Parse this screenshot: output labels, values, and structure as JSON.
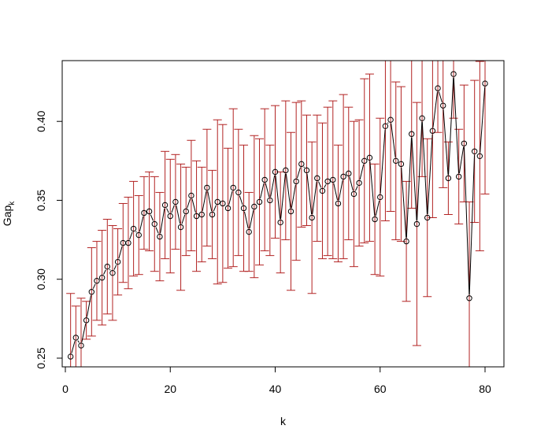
{
  "chart_data": {
    "type": "line",
    "title": "",
    "xlabel": "k",
    "ylabel": "Gap",
    "ylabel_subscript": "k",
    "xlim": [
      -0.6,
      83.6
    ],
    "ylim": [
      0.2445,
      0.4385
    ],
    "x_ticks": [
      0,
      20,
      40,
      60,
      80
    ],
    "y_ticks": [
      0.25,
      0.3,
      0.35,
      0.4
    ],
    "x_tick_labels": [
      "0",
      "20",
      "40",
      "60",
      "80"
    ],
    "y_tick_labels": [
      "0.25",
      "0.30",
      "0.35",
      "0.40"
    ],
    "grid": false,
    "legend": "none",
    "colors": {
      "line": "#000000",
      "points": "#000000",
      "error_bars": "#b22222",
      "frame": "#000000"
    },
    "series": [
      {
        "x": [
          1,
          2,
          3,
          4,
          5,
          6,
          7,
          8,
          9,
          10,
          11,
          12,
          13,
          14,
          15,
          16,
          17,
          18,
          19,
          20,
          21,
          22,
          23,
          24,
          25,
          26,
          27,
          28,
          29,
          30,
          31,
          32,
          33,
          34,
          35,
          36,
          37,
          38,
          39,
          40,
          41,
          42,
          43,
          44,
          45,
          46,
          47,
          48,
          49,
          50,
          51,
          52,
          53,
          54,
          55,
          56,
          57,
          58,
          59,
          60,
          61,
          62,
          63,
          64,
          65,
          66,
          67,
          68,
          69,
          70,
          71,
          72,
          73,
          74,
          75,
          76,
          77,
          78,
          79,
          80
        ],
        "y": [
          0.251,
          0.263,
          0.258,
          0.274,
          0.292,
          0.299,
          0.301,
          0.308,
          0.304,
          0.311,
          0.323,
          0.323,
          0.332,
          0.328,
          0.342,
          0.343,
          0.335,
          0.327,
          0.347,
          0.34,
          0.349,
          0.333,
          0.343,
          0.353,
          0.34,
          0.341,
          0.358,
          0.341,
          0.349,
          0.348,
          0.345,
          0.358,
          0.355,
          0.345,
          0.33,
          0.346,
          0.349,
          0.363,
          0.35,
          0.368,
          0.336,
          0.369,
          0.343,
          0.362,
          0.373,
          0.369,
          0.339,
          0.364,
          0.356,
          0.362,
          0.363,
          0.348,
          0.365,
          0.367,
          0.354,
          0.361,
          0.375,
          0.377,
          0.338,
          0.352,
          0.397,
          0.401,
          0.375,
          0.373,
          0.324,
          0.392,
          0.335,
          0.402,
          0.339,
          0.394,
          0.421,
          0.41,
          0.364,
          0.43,
          0.365,
          0.386,
          0.288,
          0.381,
          0.378,
          0.424
        ],
        "err": [
          0.04,
          0.02,
          0.03,
          0.012,
          0.028,
          0.025,
          0.03,
          0.03,
          0.03,
          0.021,
          0.025,
          0.029,
          0.03,
          0.025,
          0.023,
          0.025,
          0.03,
          0.028,
          0.034,
          0.036,
          0.03,
          0.04,
          0.028,
          0.035,
          0.035,
          0.03,
          0.037,
          0.028,
          0.052,
          0.05,
          0.038,
          0.05,
          0.04,
          0.04,
          0.025,
          0.045,
          0.04,
          0.045,
          0.035,
          0.042,
          0.032,
          0.044,
          0.05,
          0.05,
          0.04,
          0.035,
          0.048,
          0.04,
          0.043,
          0.047,
          0.05,
          0.037,
          0.052,
          0.042,
          0.046,
          0.04,
          0.052,
          0.053,
          0.035,
          0.05,
          0.06,
          0.058,
          0.05,
          0.049,
          0.038,
          0.047,
          0.077,
          0.037,
          0.05,
          0.055,
          0.028,
          0.052,
          0.023,
          0.028,
          0.03,
          0.037,
          0.061,
          0.045,
          0.06,
          0.07
        ]
      }
    ]
  }
}
